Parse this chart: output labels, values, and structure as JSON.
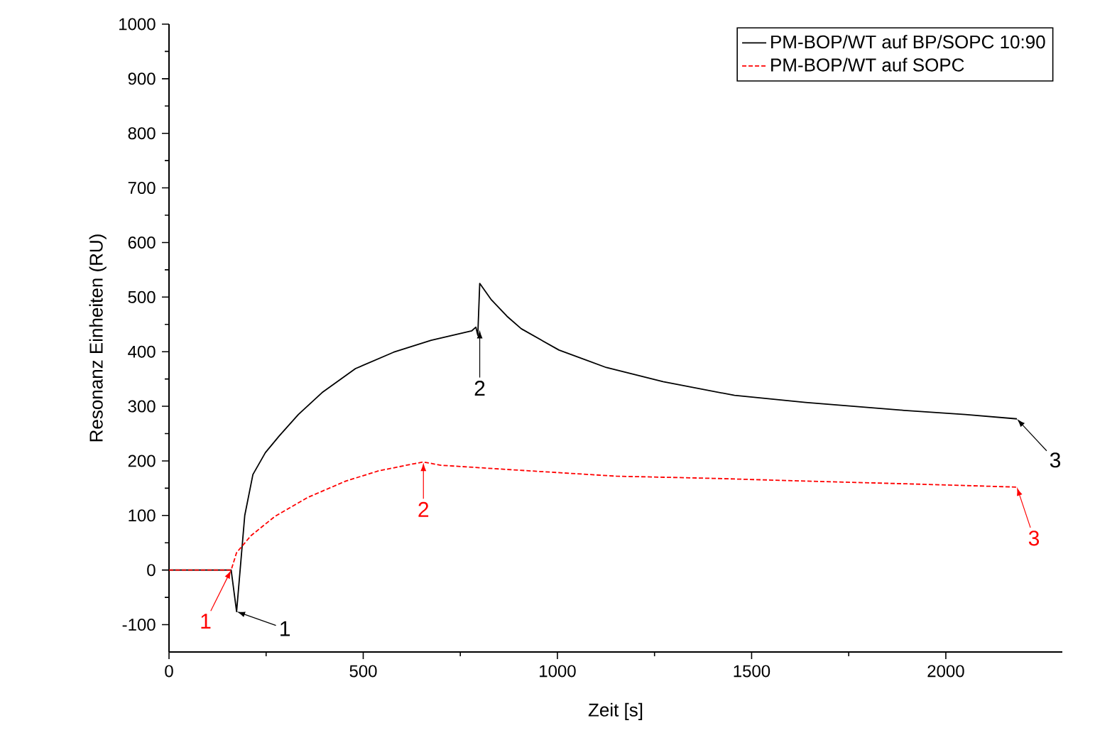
{
  "chart_data": {
    "type": "line",
    "xlabel": "Zeit [s]",
    "ylabel": "Resonanz Einheiten (RU)",
    "xlim": [
      0,
      2300
    ],
    "ylim": [
      -150,
      1000
    ],
    "xticks": [
      0,
      500,
      1000,
      1500,
      2000
    ],
    "yticks": [
      -100,
      0,
      100,
      200,
      300,
      400,
      500,
      600,
      700,
      800,
      900,
      1000
    ],
    "grid": false,
    "legend": "top right",
    "marker": "none",
    "series": [
      {
        "name": "PM-BOP/WT auf BP/SOPC 10:90",
        "color": "#000000",
        "line_style": "solid",
        "x": [
          0,
          100,
          160,
          174,
          195,
          216,
          248,
          284,
          333,
          394,
          480,
          578,
          675,
          779,
          790,
          795,
          800,
          830,
          870,
          907,
          1004,
          1126,
          1272,
          1456,
          1639,
          1883,
          2050,
          2183
        ],
        "values": [
          0,
          0,
          0,
          -76,
          100,
          175,
          215,
          246,
          285,
          325,
          369,
          399,
          421,
          438,
          445,
          430,
          525,
          495,
          465,
          442,
          403,
          371,
          345,
          320,
          307,
          293,
          285,
          277
        ]
      },
      {
        "name": "PM-BOP/WT auf SOPC",
        "color": "#ff0000",
        "line_style": "dashed",
        "x": [
          0,
          100,
          160,
          174,
          211,
          272,
          357,
          455,
          541,
          632,
          655,
          700,
          900,
          1151,
          1400,
          1639,
          1900,
          2183
        ],
        "values": [
          0,
          0,
          0,
          32,
          63,
          98,
          133,
          163,
          182,
          195,
          198,
          192,
          183,
          172,
          168,
          163,
          158,
          152
        ]
      }
    ],
    "annotations": [
      {
        "text": "1",
        "x": 174,
        "y": -76
      },
      {
        "text": "2",
        "x": 800,
        "y": 440
      },
      {
        "text": "3",
        "x": 2183,
        "y": 277
      },
      {
        "text": "1",
        "x": 160,
        "y": 0
      },
      {
        "text": "2",
        "x": 655,
        "y": 197
      },
      {
        "text": "3",
        "x": 2183,
        "y": 152
      }
    ]
  }
}
